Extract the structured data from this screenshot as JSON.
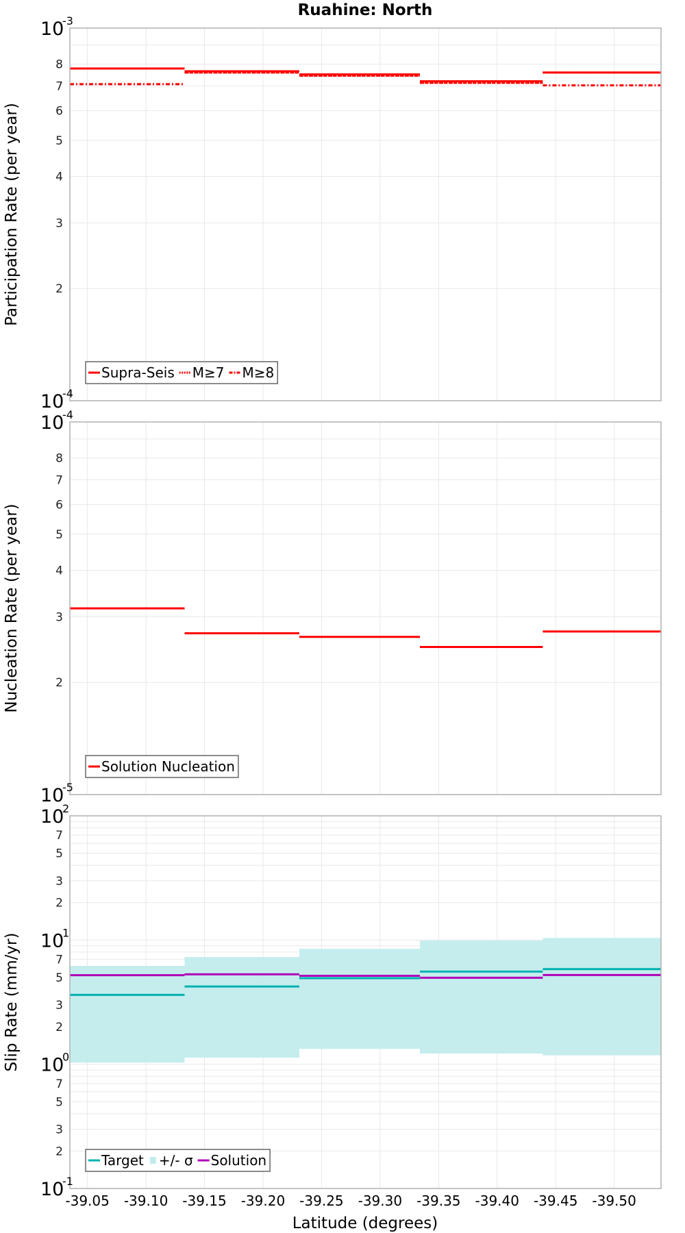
{
  "title": "Ruahine: North",
  "colors": {
    "red": "#ff0000",
    "target": "#00b0b0",
    "sigma": "#c2ecec",
    "solution": "#b000b8",
    "grid": "#e8e8e8",
    "frame": "#b0b0b0"
  },
  "xaxis": {
    "label": "Latitude (degrees)",
    "range": [
      -39.035,
      -39.54
    ],
    "ticks": [
      -39.05,
      -39.1,
      -39.15,
      -39.2,
      -39.25,
      -39.3,
      -39.35,
      -39.4,
      -39.45,
      -39.5
    ],
    "tick_labels": [
      "-39.05",
      "-39.10",
      "-39.15",
      "-39.20",
      "-39.25",
      "-39.30",
      "-39.35",
      "-39.40",
      "-39.45",
      "-39.50"
    ]
  },
  "chart_data": [
    {
      "type": "line",
      "subtype": "step",
      "title": "Ruahine: North",
      "xlabel": "Latitude (degrees)",
      "ylabel": "Participation Rate (per year)",
      "yscale": "log",
      "ylim": [
        0.0001,
        0.001
      ],
      "ytick_major": [
        {
          "base": "10",
          "exp": "-3",
          "value": 0.001
        },
        {
          "base": "10",
          "exp": "-4",
          "value": 0.0001
        }
      ],
      "ytick_minor": [
        {
          "label": "8",
          "value": 0.0008
        },
        {
          "label": "7",
          "value": 0.0007
        },
        {
          "label": "6",
          "value": 0.0006
        },
        {
          "label": "5",
          "value": 0.0005
        },
        {
          "label": "4",
          "value": 0.0004
        },
        {
          "label": "3",
          "value": 0.0003
        },
        {
          "label": "2",
          "value": 0.0002
        }
      ],
      "segments": [
        [
          -39.035,
          -39.133
        ],
        [
          -39.133,
          -39.231
        ],
        [
          -39.231,
          -39.334
        ],
        [
          -39.334,
          -39.439
        ],
        [
          -39.439,
          -39.54
        ]
      ],
      "series": [
        {
          "name": "Supra-Seis",
          "style": "solid",
          "values": [
            0.000779,
            0.000766,
            0.000751,
            0.00072,
            0.00076
          ]
        },
        {
          "name": "M≥7",
          "style": "dotted",
          "values": [
            0.000779,
            0.00076,
            0.000745,
            0.000713,
            0.00076
          ]
        },
        {
          "name": "M≥8",
          "style": "dashdot",
          "values": [
            0.000707,
            0.00076,
            0.000745,
            0.000713,
            0.000702
          ]
        }
      ],
      "legend": {
        "position": "lower left",
        "entries": [
          "Supra-Seis",
          "M≥7",
          "M≥8"
        ]
      },
      "grid": true
    },
    {
      "type": "line",
      "subtype": "step",
      "xlabel": "Latitude (degrees)",
      "ylabel": "Nucleation Rate (per year)",
      "yscale": "log",
      "ylim": [
        1e-05,
        0.0001
      ],
      "ytick_major": [
        {
          "base": "10",
          "exp": "-4",
          "value": 0.0001
        },
        {
          "base": "10",
          "exp": "-5",
          "value": 1e-05
        }
      ],
      "ytick_minor": [
        {
          "label": "8",
          "value": 8e-05
        },
        {
          "label": "7",
          "value": 7e-05
        },
        {
          "label": "6",
          "value": 6e-05
        },
        {
          "label": "5",
          "value": 5e-05
        },
        {
          "label": "4",
          "value": 4e-05
        },
        {
          "label": "3",
          "value": 3e-05
        },
        {
          "label": "2",
          "value": 2e-05
        }
      ],
      "segments": [
        [
          -39.035,
          -39.133
        ],
        [
          -39.133,
          -39.231
        ],
        [
          -39.231,
          -39.334
        ],
        [
          -39.334,
          -39.439
        ],
        [
          -39.439,
          -39.54
        ]
      ],
      "series": [
        {
          "name": "Solution Nucleation",
          "style": "solid",
          "values": [
            3.16e-05,
            2.71e-05,
            2.65e-05,
            2.49e-05,
            2.74e-05
          ]
        }
      ],
      "legend": {
        "position": "lower left",
        "entries": [
          "Solution Nucleation"
        ]
      },
      "grid": true
    },
    {
      "type": "line",
      "subtype": "step",
      "xlabel": "Latitude (degrees)",
      "ylabel": "Slip Rate (mm/yr)",
      "yscale": "log",
      "ylim": [
        0.1,
        100
      ],
      "ytick_major": [
        {
          "base": "10",
          "exp": "2",
          "value": 100
        },
        {
          "base": "10",
          "exp": "1",
          "value": 10
        },
        {
          "base": "10",
          "exp": "0",
          "value": 1
        },
        {
          "base": "10",
          "exp": "-1",
          "value": 0.1
        }
      ],
      "ytick_minor": [
        {
          "label": "7",
          "value": 70
        },
        {
          "label": "5",
          "value": 50
        },
        {
          "label": "3",
          "value": 30
        },
        {
          "label": "2",
          "value": 20
        },
        {
          "label": "7",
          "value": 7
        },
        {
          "label": "5",
          "value": 5
        },
        {
          "label": "3",
          "value": 3
        },
        {
          "label": "2",
          "value": 2
        },
        {
          "label": "7",
          "value": 0.7
        },
        {
          "label": "5",
          "value": 0.5
        },
        {
          "label": "3",
          "value": 0.3
        },
        {
          "label": "2",
          "value": 0.2
        }
      ],
      "segments": [
        [
          -39.035,
          -39.133
        ],
        [
          -39.133,
          -39.231
        ],
        [
          -39.231,
          -39.334
        ],
        [
          -39.334,
          -39.439
        ],
        [
          -39.439,
          -39.54
        ]
      ],
      "series": [
        {
          "name": "Target",
          "values": [
            3.62,
            4.23,
            4.93,
            5.57,
            5.84
          ]
        },
        {
          "name": "+/- σ",
          "lower": [
            1.03,
            1.13,
            1.33,
            1.22,
            1.18
          ],
          "upper": [
            6.2,
            7.3,
            8.5,
            9.9,
            10.4
          ]
        },
        {
          "name": "Solution",
          "values": [
            5.21,
            5.3,
            5.16,
            4.97,
            5.23
          ]
        }
      ],
      "legend": {
        "position": "lower left",
        "entries": [
          "Target",
          "+/- σ",
          "Solution"
        ]
      },
      "grid": true
    }
  ]
}
